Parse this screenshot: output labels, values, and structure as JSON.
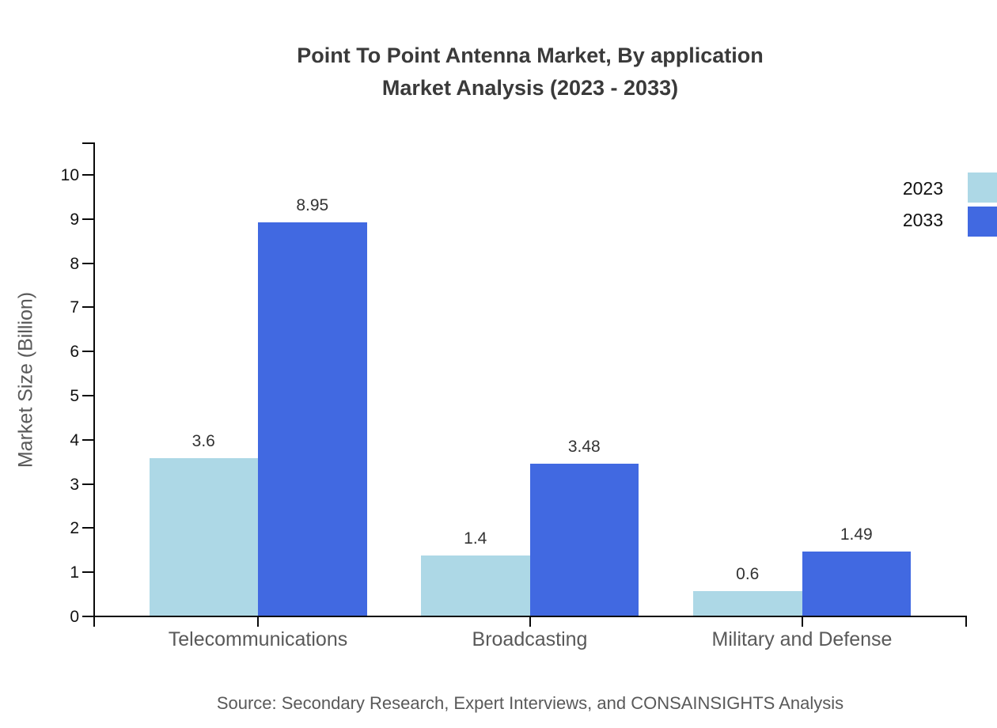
{
  "title": {
    "line1": "Point To Point Antenna Market, By application",
    "line2": "Market Analysis (2023 - 2033)"
  },
  "source": "Source: Secondary Research, Expert Interviews, and CONSAINSIGHTS Analysis",
  "chart_data": {
    "type": "bar",
    "title": "Point To Point Antenna Market, By application Market Analysis (2023 - 2033)",
    "categories": [
      "Telecommunications",
      "Broadcasting",
      "Military and Defense"
    ],
    "series": [
      {
        "name": "2023",
        "color": "#ADD8E6",
        "values": [
          3.6,
          1.4,
          0.6
        ]
      },
      {
        "name": "2033",
        "color": "#4169E1",
        "values": [
          8.95,
          3.48,
          1.49
        ]
      }
    ],
    "xlabel": "",
    "ylabel": "Market Size (Billion)",
    "ylim": [
      0,
      10
    ],
    "yticks": [
      0,
      1,
      2,
      3,
      4,
      5,
      6,
      7,
      8,
      9,
      10
    ],
    "grid": false,
    "legend_position": "top-right",
    "value_label_format": [
      "3.6",
      "8.95",
      "1.4",
      "3.48",
      "0.6",
      "1.49"
    ]
  },
  "colors": {
    "series_2023": "#ADD8E6",
    "series_2033": "#4169E1",
    "axis": "#0a0a0a",
    "title_text": "#3a3a3a",
    "muted_text": "#595959",
    "tick_text": "#111111",
    "background": "#ffffff"
  }
}
